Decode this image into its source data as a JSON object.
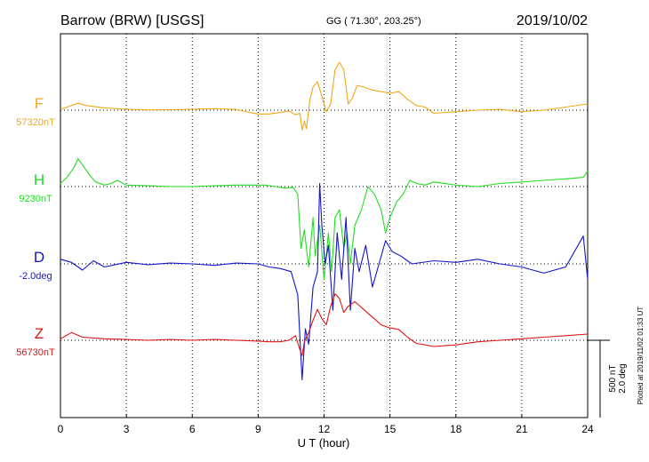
{
  "header": {
    "station": "Barrow (BRW)  [USGS]",
    "coords": "GG ( 71.30°, 203.25°)",
    "date": "2019/10/02"
  },
  "footer": {
    "plotted": "Plotted at 2019/11/02 01:33 UT",
    "scale_nt": "500 nT",
    "scale_deg": "2.0 deg"
  },
  "chart_data": {
    "type": "line",
    "xlabel": "U T (hour)",
    "xlim": [
      0,
      24
    ],
    "xticks": [
      0,
      3,
      6,
      9,
      12,
      15,
      18,
      21,
      24
    ],
    "grid": true,
    "scale_bar": {
      "nT": 500,
      "deg": 2.0
    },
    "colors": {
      "F": "#f0a818",
      "H": "#22dd22",
      "D": "#1414cc",
      "Z": "#dd1414"
    },
    "series": [
      {
        "name": "F",
        "baseline_label": "57320nT",
        "x": [
          0,
          0.3,
          0.8,
          1.2,
          2,
          3,
          4,
          5,
          6,
          7,
          8,
          8.6,
          9,
          9.5,
          10,
          10.4,
          10.7,
          10.9,
          11.0,
          11.1,
          11.2,
          11.35,
          11.5,
          11.7,
          11.9,
          12.1,
          12.3,
          12.5,
          12.7,
          12.9,
          13.1,
          13.3,
          13.5,
          13.8,
          14.2,
          14.6,
          15.0,
          15.4,
          15.8,
          16.2,
          16.6,
          17,
          18,
          19,
          20,
          21,
          22,
          23,
          24
        ],
        "y": [
          5,
          20,
          45,
          30,
          15,
          5,
          2,
          3,
          5,
          10,
          5,
          -15,
          -25,
          -25,
          -15,
          -5,
          -30,
          -20,
          -130,
          -70,
          -120,
          60,
          150,
          185,
          90,
          -10,
          40,
          260,
          310,
          260,
          40,
          80,
          160,
          150,
          130,
          120,
          110,
          120,
          70,
          30,
          20,
          -20,
          -10,
          0,
          5,
          -10,
          0,
          20,
          40
        ]
      },
      {
        "name": "H",
        "baseline_label": "9230nT",
        "x": [
          0,
          0.3,
          0.6,
          0.8,
          1.0,
          1.3,
          1.6,
          2,
          2.3,
          2.6,
          3,
          4,
          5,
          6,
          7,
          8,
          8.8,
          9.3,
          9.8,
          10.2,
          10.6,
          10.8,
          10.95,
          11.1,
          11.3,
          11.5,
          11.6,
          11.8,
          12.0,
          12.2,
          12.35,
          12.5,
          12.7,
          12.9,
          13.05,
          13.2,
          13.4,
          13.7,
          14.0,
          14.3,
          14.6,
          14.8,
          15.0,
          15.3,
          15.6,
          15.9,
          16.2,
          16.6,
          17,
          18,
          19,
          20,
          21,
          22,
          23,
          23.8,
          24
        ],
        "y": [
          20,
          60,
          120,
          180,
          140,
          80,
          30,
          10,
          20,
          40,
          10,
          5,
          0,
          0,
          5,
          10,
          10,
          10,
          0,
          -10,
          -5,
          -50,
          -400,
          -280,
          -520,
          -200,
          -450,
          -250,
          -600,
          -300,
          -550,
          -200,
          -150,
          -400,
          -300,
          -500,
          -250,
          -150,
          0,
          -50,
          -150,
          -300,
          -200,
          -100,
          -50,
          40,
          20,
          10,
          30,
          10,
          0,
          20,
          30,
          40,
          50,
          60,
          100
        ]
      },
      {
        "name": "D",
        "baseline_label": "-2.0deg",
        "x": [
          0,
          0.5,
          1,
          1.5,
          2,
          3,
          4,
          5,
          6,
          7,
          8,
          9,
          9.5,
          10,
          10.5,
          10.8,
          11.0,
          11.15,
          11.3,
          11.5,
          11.7,
          11.8,
          11.9,
          12.05,
          12.2,
          12.4,
          12.6,
          12.8,
          13.0,
          13.2,
          13.4,
          13.6,
          13.9,
          14.2,
          14.5,
          14.8,
          15.1,
          15.5,
          16,
          17,
          18,
          19,
          20,
          21,
          22,
          23,
          23.8,
          24
        ],
        "y": [
          30,
          10,
          -40,
          20,
          -20,
          10,
          -5,
          5,
          0,
          -10,
          5,
          0,
          -20,
          -30,
          -50,
          -200,
          -750,
          -420,
          -520,
          -150,
          -50,
          520,
          250,
          0,
          120,
          -300,
          200,
          -100,
          300,
          -300,
          100,
          -50,
          120,
          -150,
          0,
          150,
          80,
          50,
          0,
          20,
          10,
          30,
          0,
          -20,
          -60,
          -20,
          180,
          -100
        ]
      },
      {
        "name": "Z",
        "baseline_label": "56730nT",
        "x": [
          0,
          0.5,
          1,
          2,
          3,
          4,
          5,
          6,
          7,
          8,
          9,
          9.5,
          10,
          10.4,
          10.7,
          10.9,
          11.0,
          11.1,
          11.3,
          11.5,
          11.7,
          11.9,
          12.1,
          12.3,
          12.5,
          12.7,
          12.9,
          13.1,
          13.4,
          13.8,
          14.2,
          14.6,
          15.0,
          15.4,
          15.8,
          16.2,
          16.6,
          17,
          18,
          19,
          20,
          21,
          22,
          23,
          24
        ],
        "y": [
          10,
          50,
          20,
          10,
          5,
          0,
          5,
          0,
          5,
          0,
          -5,
          -10,
          -10,
          0,
          30,
          -60,
          -100,
          -10,
          50,
          130,
          200,
          140,
          100,
          220,
          300,
          270,
          180,
          220,
          250,
          200,
          150,
          100,
          80,
          70,
          20,
          -20,
          -30,
          -40,
          -30,
          -10,
          0,
          10,
          20,
          30,
          40
        ]
      }
    ]
  }
}
